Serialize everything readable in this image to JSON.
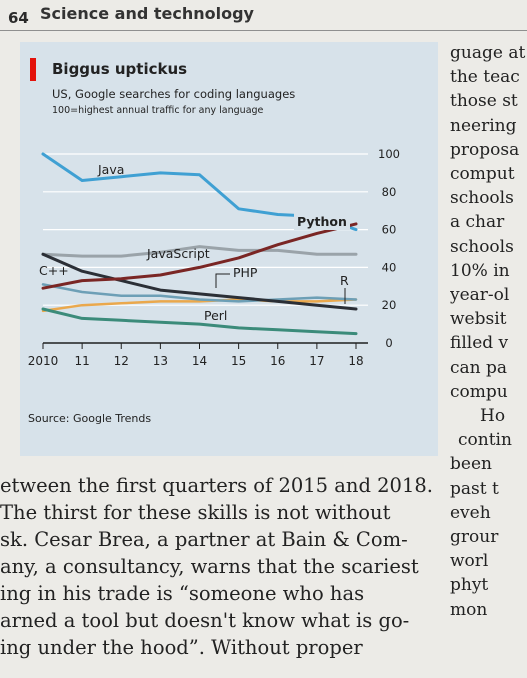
{
  "page": {
    "number": "64",
    "section": "Science and technology"
  },
  "chart": {
    "title": "Biggus uptickus",
    "subtitle": "US, Google searches for coding languages",
    "note": "100=highest annual traffic for any language",
    "source": "Source: Google Trends"
  },
  "chart_data": {
    "type": "line",
    "x": [
      2010,
      2011,
      2012,
      2013,
      2014,
      2015,
      2016,
      2017,
      2018
    ],
    "xticks": [
      "2010",
      "11",
      "12",
      "13",
      "14",
      "15",
      "16",
      "17",
      "18"
    ],
    "yticks": [
      0,
      20,
      40,
      60,
      80,
      100
    ],
    "ylim": [
      0,
      100
    ],
    "y_axis_side": "right",
    "grid": true,
    "series": [
      {
        "name": "Java",
        "color": "#3fa0d3",
        "values": [
          100,
          86,
          88,
          90,
          89,
          71,
          68,
          67,
          60
        ]
      },
      {
        "name": "Python",
        "color": "#7a2624",
        "values": [
          29,
          33,
          34,
          36,
          40,
          45,
          52,
          58,
          63
        ]
      },
      {
        "name": "JavaScript",
        "color": "#9aa3a9",
        "values": [
          47,
          46,
          46,
          48,
          51,
          49,
          49,
          47,
          47
        ]
      },
      {
        "name": "C++",
        "color": "#2b2f36",
        "values": [
          47,
          38,
          33,
          28,
          26,
          24,
          22,
          20,
          18
        ]
      },
      {
        "name": "PHP",
        "color": "#6d9fb6",
        "values": [
          31,
          27,
          25,
          25,
          23,
          22,
          23,
          24,
          23
        ]
      },
      {
        "name": "R",
        "color": "#eaa84c",
        "values": [
          17,
          20,
          21,
          22,
          22,
          23,
          22,
          22,
          23
        ]
      },
      {
        "name": "Perl",
        "color": "#3b8b7a",
        "values": [
          18,
          13,
          12,
          11,
          10,
          8,
          7,
          6,
          5
        ]
      }
    ]
  },
  "article": {
    "main_lines": [
      "etween the first quarters of 2015 and 2018.",
      "  The thirst for these skills is not without",
      "sk. Cesar Brea, a partner at Bain & Com-",
      "any, a consultancy, warns that the scariest",
      "ing in his trade is “someone who has",
      "arned a tool but doesn't know what is go-",
      "ing under the hood”. Without proper"
    ],
    "right_lines": [
      "guage at",
      "the teac",
      "those st",
      "neering",
      "proposa",
      "comput",
      "schools",
      "a char",
      "schools",
      "10% in",
      "year-ol",
      "websit",
      "filled v",
      "can pa",
      "compu",
      "Ho",
      "contin",
      "been",
      "past t",
      "eveh",
      "grour",
      "worl",
      "phyt",
      "mon"
    ]
  }
}
